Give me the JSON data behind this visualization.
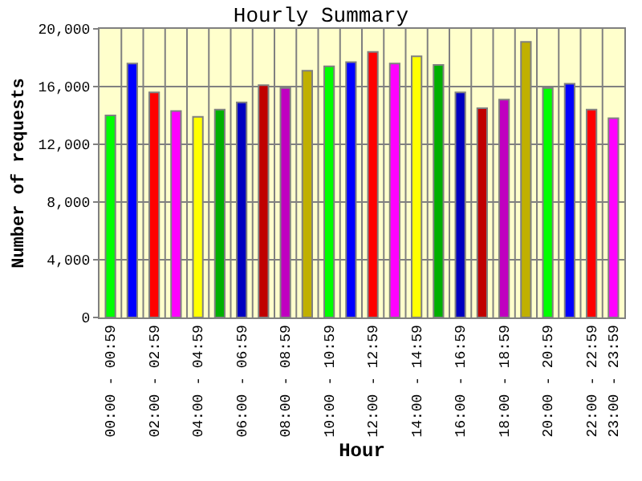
{
  "chart_data": {
    "type": "bar",
    "title": "Hourly Summary",
    "xlabel": "Hour",
    "ylabel": "Number of requests",
    "categories": [
      "00:00 - 00:59",
      null,
      "02:00 - 02:59",
      null,
      "04:00 - 04:59",
      null,
      "06:00 - 06:59",
      null,
      "08:00 - 08:59",
      null,
      "10:00 - 10:59",
      null,
      "12:00 - 12:59",
      null,
      "14:00 - 14:59",
      null,
      "16:00 - 16:59",
      null,
      "18:00 - 18:59",
      null,
      "20:00 - 20:59",
      null,
      "22:00 - 22:59",
      "23:00 - 23:59"
    ],
    "values": [
      14000,
      17600,
      15600,
      14300,
      13900,
      14400,
      14900,
      16100,
      15900,
      17100,
      17400,
      17700,
      18400,
      17600,
      18100,
      17500,
      15600,
      14500,
      15100,
      19100,
      15900,
      16200,
      14400,
      13800
    ],
    "colors": [
      "#00ff00",
      "#0000ff",
      "#ff0000",
      "#ff00ff",
      "#ffff00",
      "#00b000",
      "#0000c0",
      "#c00000",
      "#c000c0",
      "#c0b000",
      "#00ff00",
      "#0000ff",
      "#ff0000",
      "#ff00ff",
      "#ffff00",
      "#00b000",
      "#0000c0",
      "#c00000",
      "#c000c0",
      "#c0b000",
      "#00ff00",
      "#0000ff",
      "#ff0000",
      "#ff00ff"
    ],
    "ylim": [
      0,
      20000
    ],
    "yticks": [
      {
        "value": 0,
        "label": "0"
      },
      {
        "value": 4000,
        "label": "4,000"
      },
      {
        "value": 8000,
        "label": "8,000"
      },
      {
        "value": 12000,
        "label": "12,000"
      },
      {
        "value": 16000,
        "label": "16,000"
      },
      {
        "value": 20000,
        "label": "20,000"
      }
    ],
    "grid": true
  }
}
